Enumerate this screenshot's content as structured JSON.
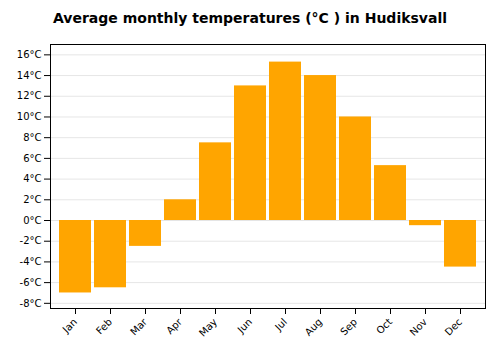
{
  "chart_data": {
    "type": "bar",
    "title": "Average monthly temperatures (°C ) in Hudiksvall",
    "categories": [
      "Jan",
      "Feb",
      "Mar",
      "Apr",
      "May",
      "Jun",
      "Jul",
      "Aug",
      "Sep",
      "Oct",
      "Nov",
      "Dec"
    ],
    "values": [
      -7.0,
      -6.5,
      -2.5,
      2.0,
      7.5,
      13.0,
      15.3,
      14.0,
      10.0,
      5.3,
      -0.5,
      -4.5
    ],
    "color": "#FFA500",
    "ylim": [
      -8.5,
      17.0
    ],
    "yticks": [
      {
        "value": -8,
        "label": "-8°C"
      },
      {
        "value": -6,
        "label": "-6°C"
      },
      {
        "value": -4,
        "label": "-4°C"
      },
      {
        "value": -2,
        "label": "-2°C"
      },
      {
        "value": 0,
        "label": "0°C"
      },
      {
        "value": 2,
        "label": "2°C"
      },
      {
        "value": 4,
        "label": "4°C"
      },
      {
        "value": 6,
        "label": "6°C"
      },
      {
        "value": 8,
        "label": "8°C"
      },
      {
        "value": 10,
        "label": "10°C"
      },
      {
        "value": 12,
        "label": "12°C"
      },
      {
        "value": 14,
        "label": "14°C"
      },
      {
        "value": 16,
        "label": "16°C"
      }
    ],
    "grid": true
  }
}
